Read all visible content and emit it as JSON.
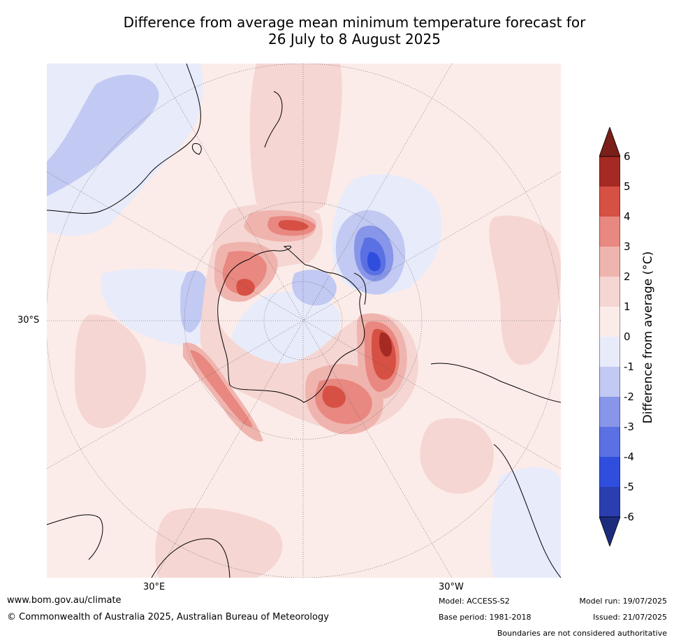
{
  "title_line1": "Difference from average mean minimum temperature forecast for",
  "title_line2": "26 July to 8 August 2025",
  "lat_label": "30°S",
  "lon_labels": {
    "east": "30°E",
    "west": "30°W"
  },
  "colorbar": {
    "label": "Difference from average (°C)",
    "ticks": [
      "6",
      "5",
      "4",
      "3",
      "2",
      "1",
      "0",
      "-1",
      "-2",
      "-3",
      "-4",
      "-5",
      "-6"
    ],
    "colors": [
      "#7a1f1a",
      "#a52a23",
      "#d65044",
      "#e88880",
      "#f0b4ae",
      "#f5d6d3",
      "#fcece9",
      "#e8ebfa",
      "#c2c9f2",
      "#8796e8",
      "#5a70e3",
      "#2f4ede",
      "#2a3eb0",
      "#1d2b7f"
    ]
  },
  "footer": {
    "url": "www.bom.gov.au/climate",
    "copyright": "© Commonwealth of Australia 2025, Australian Bureau of Meteorology",
    "model": "Model: ACCESS-S2",
    "base_period": "Base period: 1981-2018",
    "model_run": "Model run: 19/07/2025",
    "issued": "Issued: 21/07/2025",
    "disclaimer": "Boundaries are not considered authoritative"
  }
}
